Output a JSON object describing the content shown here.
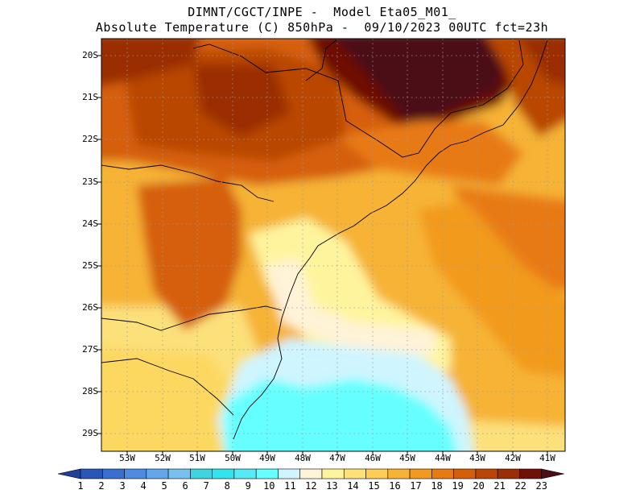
{
  "title": {
    "line1": "DIMNT/CGCT/INPE -  Model Eta05_M01_",
    "line2": "Absolute Temperature (C) 850hPa -  09/10/2023 00UTC fct=23h"
  },
  "map": {
    "lat_labels": [
      "20S",
      "21S",
      "22S",
      "23S",
      "24S",
      "25S",
      "26S",
      "27S",
      "28S",
      "29S"
    ],
    "lon_labels": [
      "53W",
      "52W",
      "51W",
      "50W",
      "49W",
      "48W",
      "47W",
      "46W",
      "45W",
      "44W",
      "43W",
      "42W",
      "41W"
    ],
    "gridlines": "dotted"
  },
  "colorbar": {
    "labels": [
      "1",
      "2",
      "3",
      "4",
      "5",
      "6",
      "7",
      "8",
      "9",
      "10",
      "11",
      "12",
      "13",
      "14",
      "15",
      "16",
      "17",
      "18",
      "19",
      "20",
      "21",
      "22",
      "23"
    ],
    "colors": [
      "#1f3f99",
      "#2a56b8",
      "#3a6fd0",
      "#4f8be0",
      "#63a6ea",
      "#79bff0",
      "#3fd4e0",
      "#33e4ee",
      "#55eaf6",
      "#66ffff",
      "#cff5ff",
      "#fff3d8",
      "#fff49e",
      "#ffe17a",
      "#fcce55",
      "#f6b335",
      "#f29a1f",
      "#e87a12",
      "#d55e0a",
      "#b94606",
      "#9a2f06",
      "#6e1106",
      "#4b0f16"
    ]
  },
  "chart_data": {
    "type": "heatmap",
    "variable": "Absolute Temperature (C) 850hPa",
    "units": "C",
    "extent": {
      "lon": [
        -53.5,
        -40.5
      ],
      "lat": [
        -29.5,
        -19.9
      ]
    },
    "value_range": [
      1,
      23
    ],
    "regions": [
      {
        "label": "coast near 45W-44W, 20S-22S",
        "value": 23
      },
      {
        "label": "interior 52W-48W, 20S-23S",
        "value": 19
      },
      {
        "label": "interior 52W-50W, 23S-26S",
        "value": 19
      },
      {
        "label": "coast 49W-47W, 24S-26S",
        "value": 13
      },
      {
        "label": "ocean 48W-45W, 26S-27S",
        "value": 12
      },
      {
        "label": "ocean 49W-46W, 28S-29.5S",
        "value": 10
      },
      {
        "label": "ocean 43W-41W, 24S-27S",
        "value": 17
      },
      {
        "label": "far east 42W-41W, 20S-22S",
        "value": 19
      }
    ]
  }
}
